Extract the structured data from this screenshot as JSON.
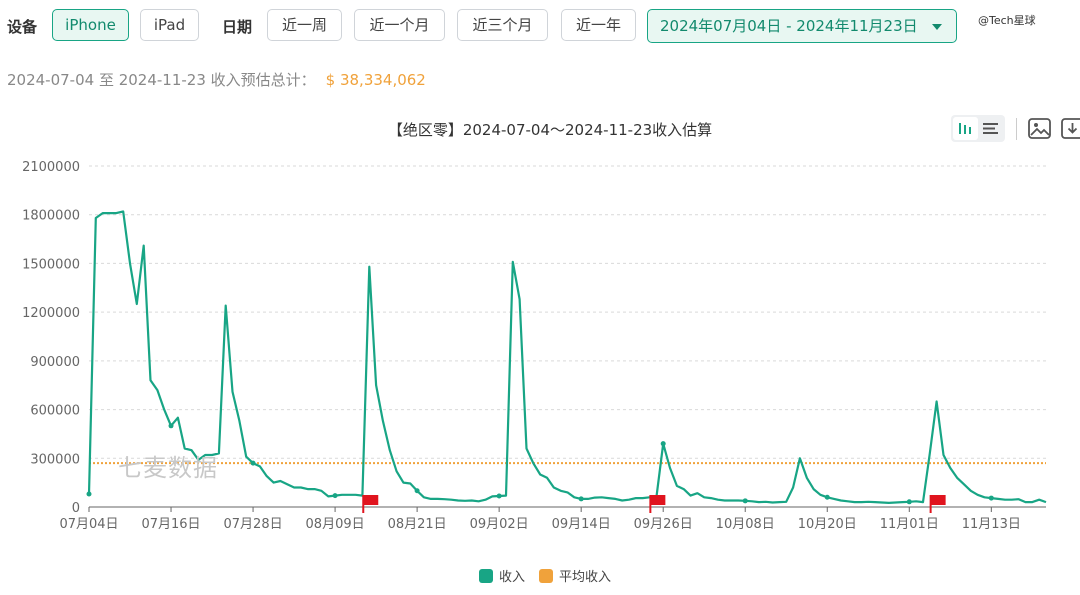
{
  "filters": {
    "device_label": "设备",
    "devices": [
      {
        "label": "iPhone",
        "active": true
      },
      {
        "label": "iPad",
        "active": false
      }
    ],
    "date_label": "日期",
    "ranges": [
      "近一周",
      "近一个月",
      "近三个月",
      "近一年"
    ],
    "selected_range": "2024年07月04日 - 2024年11月23日"
  },
  "watermark_top": "@Tech星球",
  "summary": {
    "prefix": "2024-07-04 至 2024-11-23 收入预估总计：",
    "total": "$ 38,334,062"
  },
  "toolbar": {
    "icons": [
      "bar-chart-icon",
      "list-icon",
      "image-icon",
      "download-icon"
    ]
  },
  "watermark": "七麦数据",
  "colors": {
    "revenue": "#18a585",
    "average": "#f0a23b",
    "marker": "#e0141e"
  },
  "chart_data": {
    "type": "line",
    "title": "【绝区零】2024-07-04～2024-11-23收入估算",
    "start_date": "2024-07-04",
    "x_tick_labels": [
      "07月04日",
      "07月16日",
      "07月28日",
      "08月09日",
      "08月21日",
      "09月02日",
      "09月14日",
      "09月26日",
      "10月08日",
      "10月20日",
      "11月01日",
      "11月13日"
    ],
    "y_tick_labels": [
      "0",
      "300000",
      "600000",
      "900000",
      "1200000",
      "1500000",
      "1800000",
      "2100000"
    ],
    "ylim": [
      0,
      2100000
    ],
    "grid": true,
    "legend_position": "bottom",
    "series": [
      {
        "name": "收入",
        "values": [
          80000,
          1780000,
          1810000,
          1810000,
          1810000,
          1820000,
          1500000,
          1250000,
          1610000,
          780000,
          720000,
          600000,
          500000,
          550000,
          360000,
          350000,
          290000,
          320000,
          320000,
          330000,
          1240000,
          710000,
          530000,
          310000,
          270000,
          250000,
          190000,
          150000,
          160000,
          140000,
          120000,
          120000,
          110000,
          110000,
          100000,
          65000,
          70000,
          75000,
          75000,
          75000,
          70000,
          1480000,
          750000,
          530000,
          350000,
          220000,
          150000,
          145000,
          100000,
          60000,
          50000,
          50000,
          48000,
          45000,
          40000,
          38000,
          40000,
          35000,
          45000,
          65000,
          68000,
          70000,
          1510000,
          1280000,
          360000,
          270000,
          200000,
          180000,
          120000,
          100000,
          90000,
          60000,
          50000,
          50000,
          58000,
          60000,
          55000,
          50000,
          40000,
          45000,
          55000,
          55000,
          60000,
          60000,
          390000,
          240000,
          130000,
          110000,
          70000,
          85000,
          60000,
          55000,
          45000,
          40000,
          40000,
          40000,
          38000,
          35000,
          30000,
          32000,
          28000,
          30000,
          32000,
          120000,
          300000,
          180000,
          110000,
          75000,
          60000,
          50000,
          40000,
          35000,
          30000,
          30000,
          32000,
          30000,
          28000,
          25000,
          28000,
          30000,
          32000,
          35000,
          30000,
          330000,
          650000,
          320000,
          240000,
          180000,
          140000,
          100000,
          75000,
          60000,
          55000,
          50000,
          45000,
          45000,
          48000,
          30000,
          30000,
          45000,
          30000
        ]
      },
      {
        "name": "平均收入",
        "values": [
          270000
        ]
      }
    ],
    "markers": [
      "2024-08-14",
      "2024-09-25",
      "2024-11-05"
    ]
  }
}
